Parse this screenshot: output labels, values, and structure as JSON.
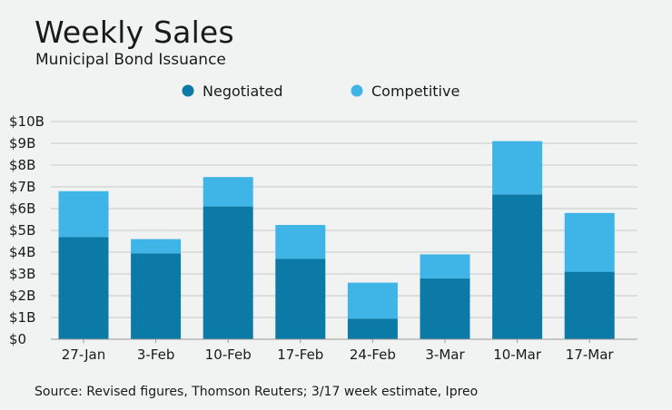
{
  "title": "Weekly Sales",
  "subtitle": "Municipal Bond Issuance",
  "source": "Source: Revised figures, Thomson Reuters; 3/17 week estimate, Ipreo",
  "colors": {
    "negotiated": "#0b7aa6",
    "competitive": "#3eb5e6",
    "grid": "#c8c8c8",
    "axis": "#9a9a9a"
  },
  "chart_data": {
    "type": "bar",
    "stacked": true,
    "categories": [
      "27-Jan",
      "3-Feb",
      "10-Feb",
      "17-Feb",
      "24-Feb",
      "3-Mar",
      "10-Mar",
      "17-Mar"
    ],
    "series": [
      {
        "name": "Negotiated",
        "values": [
          4.7,
          3.95,
          6.1,
          3.7,
          0.95,
          2.8,
          6.65,
          3.1
        ]
      },
      {
        "name": "Competitive",
        "values": [
          2.1,
          0.65,
          1.35,
          1.55,
          1.65,
          1.1,
          2.45,
          2.7
        ]
      }
    ],
    "ylim": [
      0,
      10
    ],
    "yticks": [
      "$0",
      "$1B",
      "$2B",
      "$3B",
      "$4B",
      "$5B",
      "$6B",
      "$7B",
      "$8B",
      "$9B",
      "$10B"
    ],
    "grid": true,
    "legend": "top-center"
  }
}
